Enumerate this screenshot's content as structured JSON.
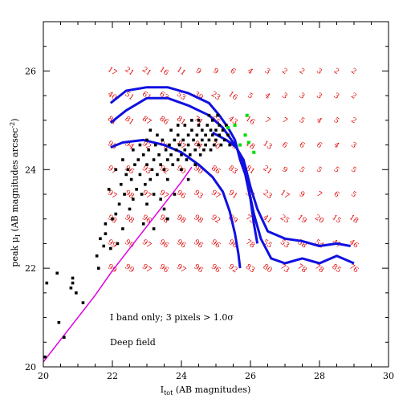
{
  "chart_data": {
    "type": "scatter",
    "xlim": [
      20,
      30
    ],
    "ylim": [
      20,
      27
    ],
    "xlabel_main": "I",
    "xlabel_sub": "tot",
    "xlabel_rest": " (AB magnitudes)",
    "ylabel_main": "peak μ",
    "ylabel_sub": "I",
    "ylabel_rest": " (AB magnitudes arcsec",
    "ylabel_sup": "-2",
    "ylabel_close": ")",
    "x_ticks": [
      20,
      22,
      24,
      26,
      28,
      30
    ],
    "y_ticks": [
      20,
      22,
      24,
      26
    ],
    "annotations": [
      "I band only; 3 pixels > 1.0σ",
      "Deep field"
    ],
    "grid_x": [
      22,
      22.5,
      23,
      23.5,
      24,
      24.5,
      25,
      25.5,
      26,
      26.5,
      27,
      27.5,
      28,
      28.5,
      29
    ],
    "grid_y": [
      26,
      25.5,
      25,
      24.5,
      24,
      23.5,
      23,
      22.5,
      22
    ],
    "grid_values": [
      [
        17,
        21,
        21,
        16,
        11,
        9,
        9,
        6,
        4,
        3,
        2,
        2,
        3,
        2,
        2
      ],
      [
        40,
        51,
        61,
        63,
        53,
        39,
        23,
        16,
        5,
        4,
        3,
        3,
        3,
        3,
        2
      ],
      [
        81,
        81,
        87,
        86,
        81,
        71,
        65,
        43,
        16,
        7,
        7,
        5,
        4,
        5,
        2
      ],
      [
        95,
        94,
        92,
        90,
        87,
        81,
        70,
        55,
        18,
        13,
        6,
        6,
        6,
        4,
        3
      ],
      [
        97,
        96,
        93,
        92,
        90,
        90,
        86,
        83,
        81,
        21,
        9,
        5,
        5,
        5,
        5
      ],
      [
        97,
        98,
        97,
        97,
        96,
        93,
        97,
        91,
        35,
        23,
        17,
        9,
        7,
        6,
        5
      ],
      [
        98,
        98,
        96,
        98,
        98,
        98,
        92,
        89,
        73,
        41,
        25,
        19,
        20,
        15,
        18
      ],
      [
        99,
        99,
        97,
        96,
        96,
        96,
        96,
        96,
        78,
        55,
        53,
        58,
        54,
        47,
        46
      ],
      [
        99,
        99,
        97,
        96,
        97,
        96,
        96,
        92,
        83,
        80,
        73,
        78,
        78,
        85,
        76
      ]
    ],
    "line_color": "#1010e0",
    "diag_color": "#e000e0",
    "marker_color": "#000000",
    "highlight_color": "#00dd00",
    "series": [
      {
        "kind": "line",
        "color": "#1010e0",
        "x": [
          21.95,
          22.4,
          23.0,
          23.6,
          24.2,
          24.8,
          25.1,
          25.35,
          25.55,
          25.7,
          25.85,
          26.0,
          26.1,
          26.2
        ],
        "y": [
          25.35,
          25.6,
          25.67,
          25.67,
          25.55,
          25.35,
          25.1,
          24.85,
          24.6,
          24.2,
          23.9,
          23.4,
          22.9,
          22.5
        ]
      },
      {
        "kind": "line",
        "color": "#1010e0",
        "x": [
          21.95,
          22.4,
          23.0,
          23.6,
          24.2,
          24.8,
          25.2,
          25.5,
          25.8,
          26.0,
          26.2,
          26.5,
          27.0,
          27.5,
          28.0,
          28.5,
          28.9
        ],
        "y": [
          24.95,
          25.2,
          25.45,
          25.45,
          25.3,
          25.1,
          24.85,
          24.55,
          24.2,
          23.65,
          23.2,
          22.75,
          22.6,
          22.55,
          22.45,
          22.5,
          22.45
        ]
      },
      {
        "kind": "line",
        "color": "#1010e0",
        "x": [
          21.95,
          22.3,
          22.9,
          23.5,
          24.0,
          24.5,
          24.9,
          25.2,
          25.4,
          25.55,
          25.65,
          25.7
        ],
        "y": [
          24.45,
          24.55,
          24.6,
          24.5,
          24.35,
          24.1,
          23.85,
          23.55,
          23.15,
          22.7,
          22.3,
          22.0
        ]
      },
      {
        "kind": "line",
        "color": "#1010e0",
        "x": [
          24.9,
          25.3,
          25.6,
          25.8,
          25.95,
          26.1,
          26.3,
          26.6,
          27.0,
          27.5,
          28.0,
          28.5,
          29.0
        ],
        "y": [
          24.75,
          24.6,
          24.45,
          24.1,
          23.6,
          23.1,
          22.6,
          22.2,
          22.1,
          22.2,
          22.1,
          22.25,
          22.1
        ]
      },
      {
        "kind": "line",
        "color": "#e000e0",
        "x": [
          20.0,
          20.5,
          21.0,
          21.5,
          22.0,
          22.5,
          23.0,
          23.5,
          24.0,
          24.3
        ],
        "y": [
          20.1,
          20.55,
          21.0,
          21.45,
          21.95,
          22.4,
          22.85,
          23.3,
          23.75,
          24.05
        ]
      }
    ],
    "scatter_points": [
      [
        20.05,
        20.2
      ],
      [
        20.1,
        21.7
      ],
      [
        20.4,
        21.9
      ],
      [
        20.45,
        20.9
      ],
      [
        20.6,
        20.6
      ],
      [
        20.8,
        21.6
      ],
      [
        20.85,
        21.8
      ],
      [
        20.85,
        21.7
      ],
      [
        20.95,
        21.5
      ],
      [
        21.15,
        21.3
      ],
      [
        21.55,
        22.25
      ],
      [
        21.6,
        22.0
      ],
      [
        21.65,
        22.6
      ],
      [
        21.75,
        22.45
      ],
      [
        21.8,
        22.7
      ],
      [
        21.8,
        22.9
      ],
      [
        21.9,
        23.6
      ],
      [
        21.95,
        22.4
      ],
      [
        22.0,
        23.0
      ],
      [
        22.1,
        23.1
      ],
      [
        22.15,
        22.5
      ],
      [
        22.2,
        23.3
      ],
      [
        22.25,
        23.7
      ],
      [
        22.3,
        22.8
      ],
      [
        22.35,
        23.5
      ],
      [
        22.4,
        23.9
      ],
      [
        22.45,
        24.0
      ],
      [
        22.5,
        23.2
      ],
      [
        22.55,
        23.8
      ],
      [
        22.6,
        23.4
      ],
      [
        22.65,
        24.1
      ],
      [
        22.7,
        23.6
      ],
      [
        22.75,
        24.2
      ],
      [
        22.8,
        23.9
      ],
      [
        22.85,
        23.5
      ],
      [
        22.9,
        24.3
      ],
      [
        22.95,
        23.7
      ],
      [
        23.0,
        24.1
      ],
      [
        23.0,
        23.3
      ],
      [
        23.05,
        24.4
      ],
      [
        23.1,
        23.8
      ],
      [
        23.15,
        24.0
      ],
      [
        23.2,
        24.2
      ],
      [
        23.2,
        23.5
      ],
      [
        23.25,
        24.5
      ],
      [
        23.3,
        23.9
      ],
      [
        23.35,
        24.3
      ],
      [
        23.4,
        24.1
      ],
      [
        23.45,
        24.6
      ],
      [
        23.5,
        24.0
      ],
      [
        23.55,
        24.4
      ],
      [
        23.6,
        24.2
      ],
      [
        23.6,
        23.8
      ],
      [
        23.65,
        24.5
      ],
      [
        23.7,
        24.3
      ],
      [
        23.75,
        24.1
      ],
      [
        23.8,
        24.6
      ],
      [
        23.85,
        24.4
      ],
      [
        23.9,
        24.2
      ],
      [
        23.9,
        24.7
      ],
      [
        23.95,
        24.5
      ],
      [
        24.0,
        24.3
      ],
      [
        24.0,
        24.0
      ],
      [
        24.05,
        24.6
      ],
      [
        24.1,
        24.4
      ],
      [
        24.15,
        24.2
      ],
      [
        24.2,
        24.7
      ],
      [
        24.2,
        24.5
      ],
      [
        24.25,
        24.3
      ],
      [
        24.3,
        24.8
      ],
      [
        24.35,
        24.6
      ],
      [
        24.4,
        24.4
      ],
      [
        24.4,
        24.1
      ],
      [
        24.45,
        24.7
      ],
      [
        24.5,
        24.5
      ],
      [
        24.5,
        24.9
      ],
      [
        24.55,
        24.3
      ],
      [
        24.6,
        24.6
      ],
      [
        24.6,
        24.8
      ],
      [
        24.65,
        24.4
      ],
      [
        24.7,
        24.7
      ],
      [
        24.7,
        24.5
      ],
      [
        24.75,
        24.9
      ],
      [
        24.8,
        24.6
      ],
      [
        24.85,
        24.8
      ],
      [
        24.85,
        24.4
      ],
      [
        24.9,
        25.0
      ],
      [
        24.9,
        24.7
      ],
      [
        24.95,
        24.5
      ],
      [
        25.0,
        24.8
      ],
      [
        25.0,
        24.6
      ],
      [
        25.05,
        25.1
      ],
      [
        25.1,
        24.9
      ],
      [
        25.1,
        24.7
      ],
      [
        25.15,
        24.5
      ],
      [
        25.2,
        24.8
      ],
      [
        25.25,
        24.6
      ],
      [
        25.3,
        24.9
      ],
      [
        25.35,
        24.7
      ],
      [
        25.4,
        24.5
      ],
      [
        23.3,
        24.7
      ],
      [
        23.7,
        24.8
      ],
      [
        24.1,
        24.9
      ],
      [
        24.5,
        25.0
      ],
      [
        24.8,
        25.1
      ],
      [
        23.0,
        24.6
      ],
      [
        22.6,
        24.4
      ],
      [
        23.2,
        22.8
      ],
      [
        22.9,
        22.9
      ],
      [
        23.5,
        23.2
      ],
      [
        23.8,
        23.5
      ],
      [
        24.2,
        23.8
      ],
      [
        22.3,
        24.2
      ],
      [
        22.1,
        24.0
      ],
      [
        23.6,
        23.0
      ],
      [
        23.1,
        24.8
      ],
      [
        23.9,
        24.9
      ],
      [
        24.3,
        25.0
      ],
      [
        22.8,
        24.5
      ],
      [
        23.4,
        23.4
      ]
    ],
    "highlight_points": [
      [
        25.35,
        24.85
      ],
      [
        25.55,
        24.9
      ],
      [
        25.85,
        24.7
      ],
      [
        25.95,
        24.55
      ],
      [
        26.1,
        24.35
      ],
      [
        25.7,
        24.5
      ],
      [
        25.9,
        25.1
      ]
    ]
  }
}
